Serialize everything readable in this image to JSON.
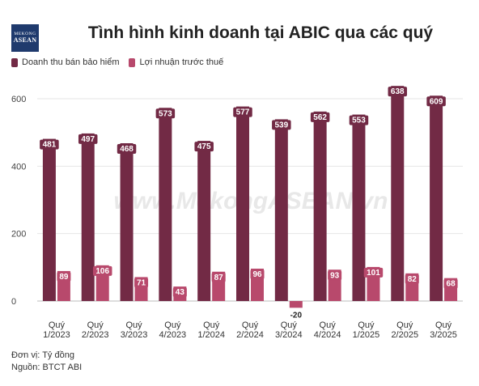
{
  "header": {
    "logo_line1": "MEKONG",
    "logo_line2": "ASEAN",
    "title": "Tình hình kinh doanh tại ABIC qua các quý"
  },
  "legend": [
    {
      "label": "Doanh thu bán bảo hiểm",
      "color": "#722a45"
    },
    {
      "label": "Lợi nhuận trước thuế",
      "color": "#b8496c"
    }
  ],
  "watermark": "www.MekongASEAN.vn",
  "footer": {
    "unit": "Đơn vị: Tỷ đồng",
    "source": "Nguồn: BTCT ABI"
  },
  "chart_data": {
    "type": "bar",
    "title": "Tình hình kinh doanh tại ABIC qua các quý",
    "categories": [
      [
        "Quý",
        "1/2023"
      ],
      [
        "Quý",
        "2/2023"
      ],
      [
        "Quý",
        "3/2023"
      ],
      [
        "Quý",
        "4/2023"
      ],
      [
        "Quý",
        "1/2024"
      ],
      [
        "Quý",
        "2/2024"
      ],
      [
        "Quý",
        "3/2024"
      ],
      [
        "Quý",
        "4/2024"
      ],
      [
        "Quý",
        "1/2025"
      ],
      [
        "Quý",
        "2/2025"
      ],
      [
        "Quý",
        "3/2025"
      ]
    ],
    "series": [
      {
        "name": "Doanh thu bán bảo hiểm",
        "color": "#722a45",
        "values": [
          481,
          497,
          468,
          573,
          475,
          577,
          539,
          562,
          553,
          638,
          609
        ]
      },
      {
        "name": "Lợi nhuận trước thuế",
        "color": "#b8496c",
        "values": [
          89,
          106,
          71,
          43,
          87,
          96,
          -20,
          93,
          101,
          82,
          68
        ]
      }
    ],
    "yticks": [
      0,
      200,
      400,
      600
    ],
    "ylim": [
      -40,
      660
    ],
    "grid": true,
    "legend_position": "top-left"
  }
}
